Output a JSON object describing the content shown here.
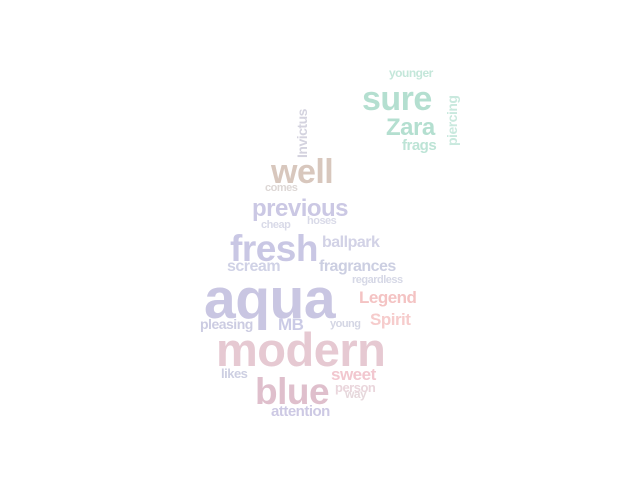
{
  "words": [
    {
      "text": "aqua",
      "color": "#c9c6e2"
    },
    {
      "text": "modern",
      "color": "#e6c9d2"
    },
    {
      "text": "fresh",
      "color": "#c9c7e4"
    },
    {
      "text": "blue",
      "color": "#dfbfcc"
    },
    {
      "text": "well",
      "color": "#d8c7bd"
    },
    {
      "text": "sure",
      "color": "#b4dfd0"
    },
    {
      "text": "previous",
      "color": "#cbc8e4"
    },
    {
      "text": "Zara",
      "color": "#b4dfd0"
    },
    {
      "text": "ballpark",
      "color": "#d2d2e6"
    },
    {
      "text": "fragrances",
      "color": "#cccfe2"
    },
    {
      "text": "scream",
      "color": "#d0d2e6"
    },
    {
      "text": "Legend",
      "color": "#f4c3c3"
    },
    {
      "text": "Spirit",
      "color": "#f6cccc"
    },
    {
      "text": "sweet",
      "color": "#f2c7cf"
    },
    {
      "text": "MB",
      "color": "#cbcbe6"
    },
    {
      "text": "pleasing",
      "color": "#cccce2"
    },
    {
      "text": "attention",
      "color": "#cdc9e4"
    },
    {
      "text": "frags",
      "color": "#bde4d6"
    },
    {
      "text": "Invictus",
      "color": "#d4d3df"
    },
    {
      "text": "piercing",
      "color": "#c9e9de"
    },
    {
      "text": "younger",
      "color": "#c4e7da"
    },
    {
      "text": "comes",
      "color": "#ddd7d5"
    },
    {
      "text": "cheap",
      "color": "#d9dae8"
    },
    {
      "text": "hoses",
      "color": "#d9dae8"
    },
    {
      "text": "regardless",
      "color": "#d6d8e6"
    },
    {
      "text": "young",
      "color": "#d4d6e4"
    },
    {
      "text": "likes",
      "color": "#cdcfe2"
    },
    {
      "text": "person",
      "color": "#ead6dc"
    },
    {
      "text": "way",
      "color": "#e6d8dc"
    }
  ]
}
